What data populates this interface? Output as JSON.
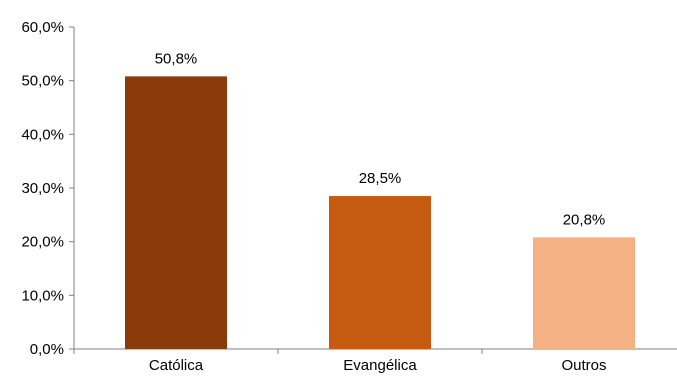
{
  "chart_data": {
    "type": "bar",
    "categories": [
      "Católica",
      "Evangélica",
      "Outros"
    ],
    "values": [
      50.8,
      28.5,
      20.8
    ],
    "data_labels": [
      "50,8%",
      "28,5%",
      "20,8%"
    ],
    "colors": [
      "#8B3A0C",
      "#C55A11",
      "#F4B183"
    ],
    "ylim": [
      0,
      60
    ],
    "y_ticks": [
      {
        "value": 0,
        "label": "0,0%"
      },
      {
        "value": 10,
        "label": "10,0%"
      },
      {
        "value": 20,
        "label": "20,0%"
      },
      {
        "value": 30,
        "label": "30,0%"
      },
      {
        "value": 40,
        "label": "40,0%"
      },
      {
        "value": 50,
        "label": "50,0%"
      },
      {
        "value": 60,
        "label": "60,0%"
      }
    ],
    "grid": false,
    "legend": "none",
    "title": "",
    "xlabel": "",
    "ylabel": ""
  }
}
